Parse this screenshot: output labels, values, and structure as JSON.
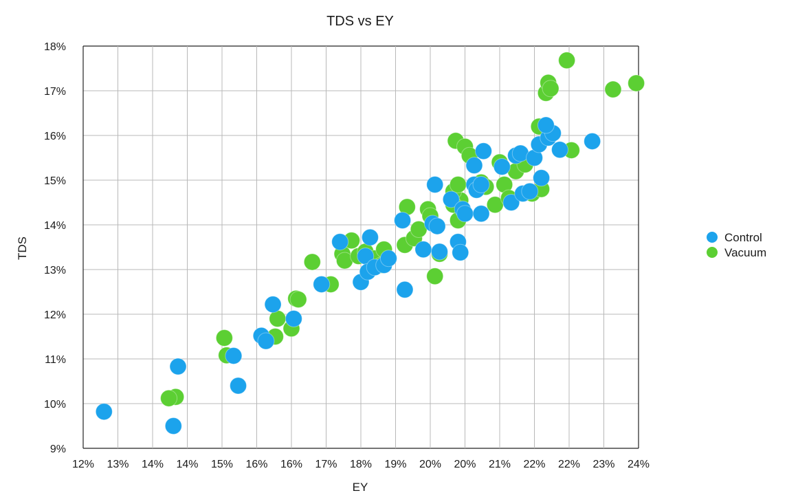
{
  "chart_data": {
    "type": "scatter",
    "title": "TDS vs EY",
    "xlabel": "EY",
    "ylabel": "TDS",
    "xlim": [
      12,
      24
    ],
    "ylim": [
      9,
      18
    ],
    "x_tick_labels": [
      "12%",
      "13%",
      "14%",
      "14%",
      "15%",
      "16%",
      "16%",
      "17%",
      "18%",
      "19%",
      "20%",
      "20%",
      "21%",
      "22%",
      "22%",
      "23%",
      "24%"
    ],
    "y_tick_labels": [
      "9%",
      "10%",
      "11%",
      "12%",
      "13%",
      "14%",
      "15%",
      "16%",
      "17%",
      "18%"
    ],
    "grid": true,
    "legend": "right",
    "series": [
      {
        "name": "Vacuum",
        "color": "#5ccf33",
        "x": [
          14.0,
          13.85,
          15.05,
          15.1,
          16.2,
          16.15,
          16.5,
          16.6,
          16.65,
          16.95,
          17.35,
          17.6,
          17.65,
          17.8,
          17.95,
          18.1,
          18.3,
          18.5,
          18.45,
          18.95,
          19.0,
          19.15,
          19.25,
          19.45,
          19.5,
          19.6,
          19.7,
          20.1,
          20.15,
          20.0,
          20.0,
          20.05,
          20.1,
          20.25,
          20.35,
          20.6,
          20.7,
          20.9,
          21.0,
          21.1,
          21.2,
          21.35,
          21.55,
          21.7,
          21.85,
          21.9,
          22.0,
          22.05,
          22.1,
          22.45,
          22.55,
          23.45,
          23.95
        ],
        "y": [
          10.15,
          10.12,
          11.47,
          11.08,
          11.9,
          11.5,
          11.68,
          12.35,
          12.33,
          13.17,
          12.67,
          13.35,
          13.2,
          13.65,
          13.3,
          13.4,
          13.25,
          13.45,
          13.1,
          13.55,
          14.4,
          13.7,
          13.9,
          14.35,
          14.2,
          12.85,
          13.35,
          14.1,
          14.55,
          14.75,
          14.45,
          15.88,
          14.9,
          15.75,
          15.55,
          14.95,
          14.85,
          14.45,
          15.4,
          14.9,
          14.6,
          15.2,
          15.35,
          14.7,
          16.2,
          14.8,
          16.95,
          17.18,
          17.05,
          17.68,
          15.67,
          17.03,
          17.17
        ]
      },
      {
        "name": "Control",
        "color": "#1ca3ec",
        "x": [
          12.45,
          13.95,
          14.05,
          15.25,
          15.35,
          15.85,
          15.95,
          16.1,
          16.55,
          17.15,
          17.55,
          18.0,
          18.1,
          18.2,
          18.15,
          18.3,
          18.5,
          18.6,
          18.9,
          18.95,
          19.35,
          19.55,
          19.6,
          19.65,
          19.7,
          20.1,
          20.15,
          20.45,
          20.45,
          20.5,
          19.95,
          20.2,
          20.25,
          20.6,
          20.6,
          20.65,
          21.05,
          21.25,
          21.35,
          21.45,
          21.5,
          21.65,
          21.75,
          21.85,
          21.9,
          22.05,
          22.15,
          22.3,
          22.0,
          23.0
        ],
        "y": [
          9.82,
          9.5,
          10.83,
          11.07,
          10.4,
          11.52,
          11.4,
          12.22,
          11.9,
          12.67,
          13.62,
          12.72,
          13.3,
          13.72,
          12.95,
          13.05,
          13.1,
          13.25,
          14.1,
          12.55,
          13.45,
          14.03,
          14.9,
          13.97,
          13.4,
          13.62,
          13.38,
          15.33,
          14.9,
          14.78,
          14.57,
          14.35,
          14.25,
          14.25,
          14.9,
          15.65,
          15.3,
          14.5,
          15.55,
          15.6,
          14.7,
          14.75,
          15.5,
          15.8,
          15.05,
          15.95,
          16.05,
          15.68,
          16.23,
          15.87
        ]
      }
    ],
    "legend_order": [
      "Control",
      "Vacuum"
    ]
  }
}
